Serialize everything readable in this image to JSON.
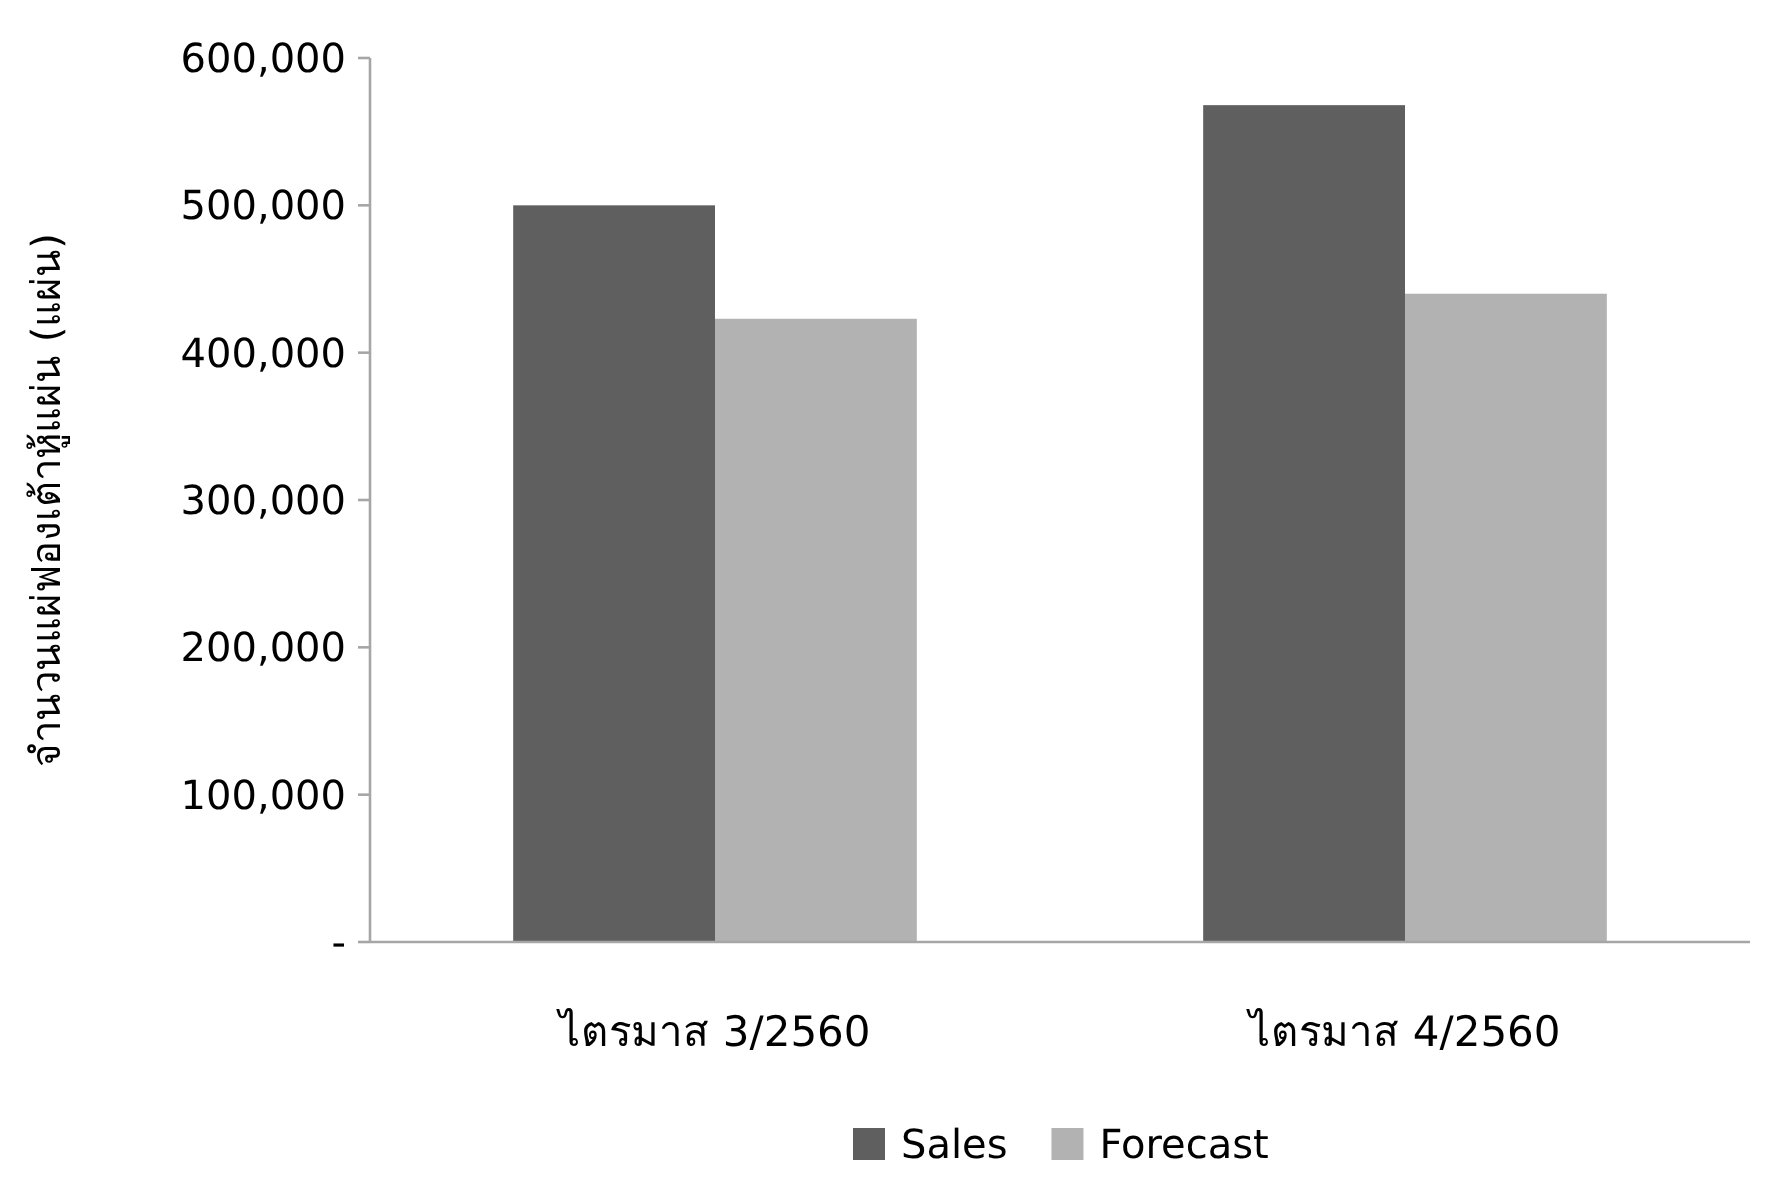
{
  "chart_data": {
    "type": "bar",
    "ylabel": "จำนวนแผ่ฟองเต้าหู้แผ่น (แผ่น)",
    "categories": [
      "ไตรมาส 3/2560",
      "ไตรมาส 4/2560"
    ],
    "series": [
      {
        "name": "Sales",
        "color": "#5f5f5f",
        "values": [
          500000,
          568000
        ]
      },
      {
        "name": "Forecast",
        "color": "#b2b2b2",
        "values": [
          423000,
          440000
        ]
      }
    ],
    "ylim": [
      0,
      600000
    ],
    "yticks": [
      {
        "value": 0,
        "label": "-"
      },
      {
        "value": 100000,
        "label": "100,000"
      },
      {
        "value": 200000,
        "label": "200,000"
      },
      {
        "value": 300000,
        "label": "300,000"
      },
      {
        "value": 400000,
        "label": "400,000"
      },
      {
        "value": 500000,
        "label": "500,000"
      },
      {
        "value": 600000,
        "label": "600,000"
      }
    ],
    "legend": "bottom",
    "grid": false
  }
}
